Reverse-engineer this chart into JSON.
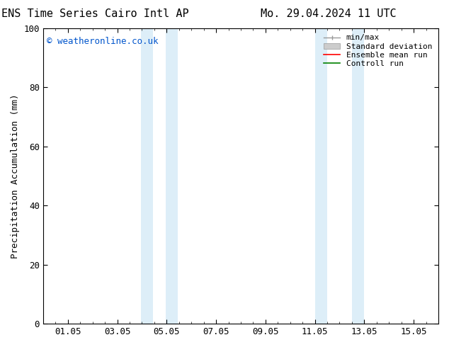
{
  "title_left": "ENS Time Series Cairo Intl AP",
  "title_right": "Mo. 29.04.2024 11 UTC",
  "ylabel": "Precipitation Accumulation (mm)",
  "watermark": "© weatheronline.co.uk",
  "watermark_color": "#0055cc",
  "ylim": [
    0,
    100
  ],
  "xlim": [
    0,
    16
  ],
  "xtick_labels": [
    "01.05",
    "03.05",
    "05.05",
    "07.05",
    "09.05",
    "11.05",
    "13.05",
    "15.05"
  ],
  "xtick_positions": [
    1,
    3,
    5,
    7,
    9,
    11,
    13,
    15
  ],
  "ytick_positions": [
    0,
    20,
    40,
    60,
    80,
    100
  ],
  "shaded_regions": [
    {
      "x_start": 3.95,
      "x_end": 4.45,
      "color": "#ddeef8"
    },
    {
      "x_start": 4.95,
      "x_end": 5.45,
      "color": "#ddeef8"
    },
    {
      "x_start": 11.0,
      "x_end": 11.5,
      "color": "#ddeef8"
    },
    {
      "x_start": 12.5,
      "x_end": 13.0,
      "color": "#ddeef8"
    }
  ],
  "background_color": "#ffffff",
  "legend_entries": [
    {
      "label": "min/max",
      "color": "#999999",
      "linestyle": "-",
      "linewidth": 1.0,
      "type": "line_caps"
    },
    {
      "label": "Standard deviation",
      "color": "#cccccc",
      "linestyle": "-",
      "linewidth": 5,
      "type": "patch"
    },
    {
      "label": "Ensemble mean run",
      "color": "#ff0000",
      "linestyle": "-",
      "linewidth": 1.2,
      "type": "line"
    },
    {
      "label": "Controll run",
      "color": "#008000",
      "linestyle": "-",
      "linewidth": 1.2,
      "type": "line"
    }
  ],
  "title_fontsize": 11,
  "axis_label_fontsize": 9,
  "tick_fontsize": 9,
  "watermark_fontsize": 9,
  "legend_fontsize": 8
}
